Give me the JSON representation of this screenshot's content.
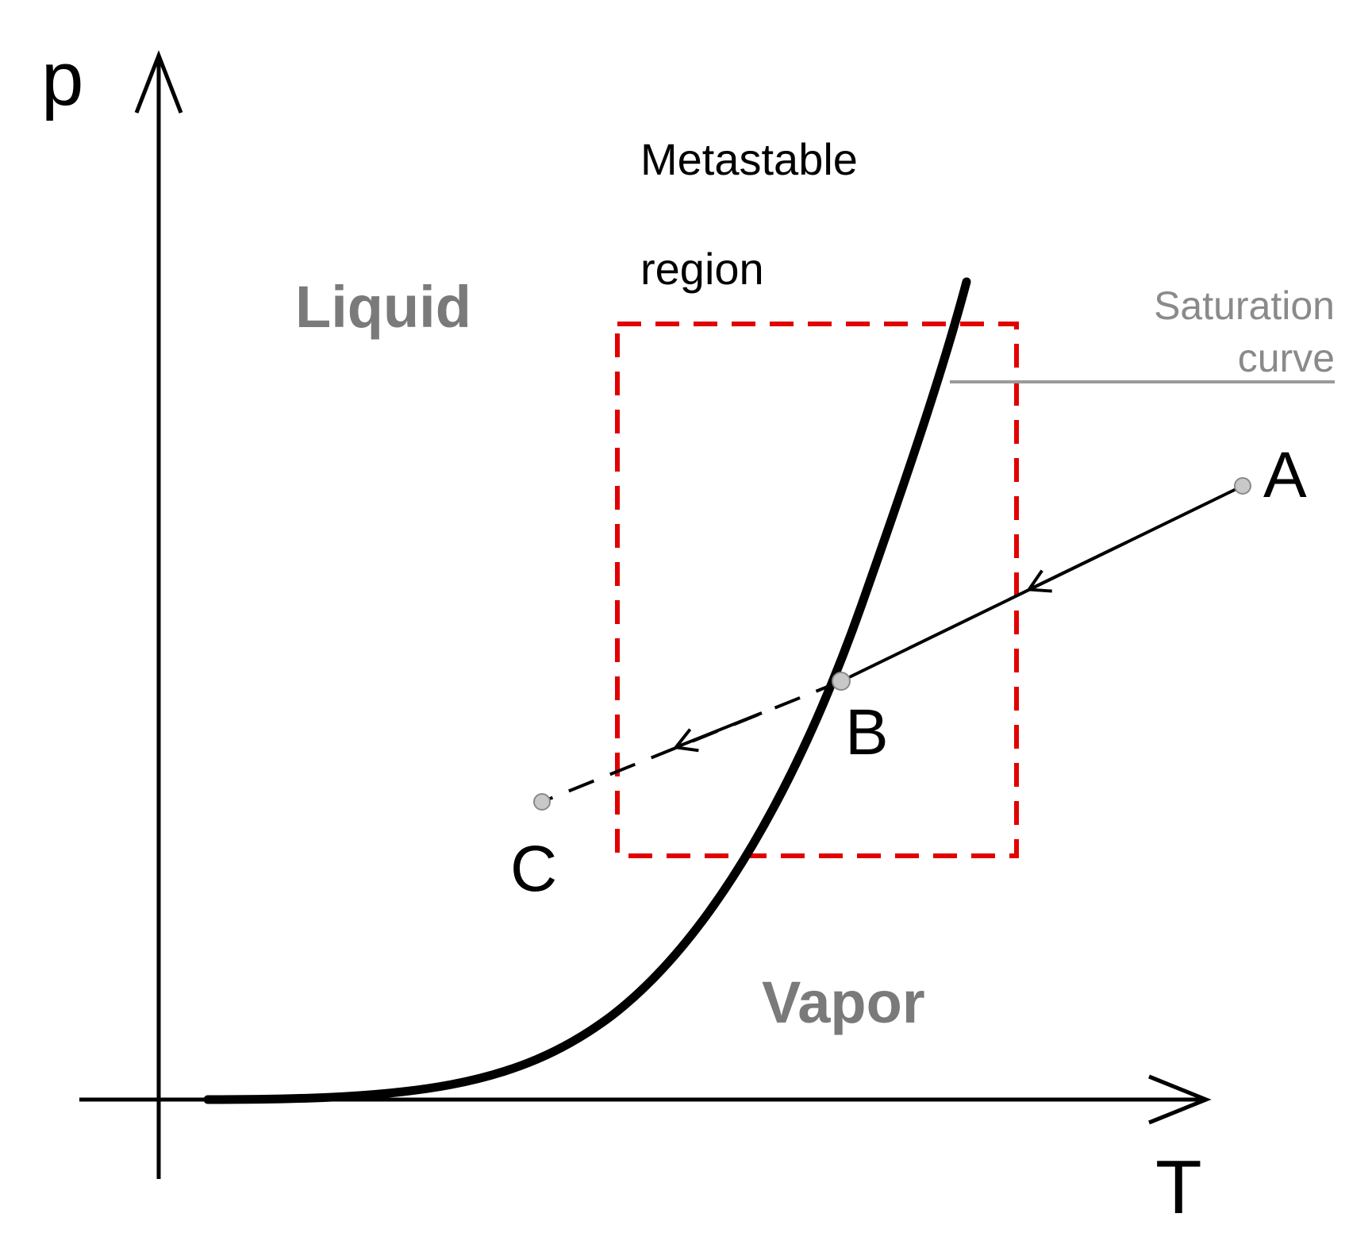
{
  "axes": {
    "y_label": "p",
    "x_label": "T"
  },
  "regions": {
    "liquid": "Liquid",
    "vapor": "Vapor"
  },
  "metastable": {
    "line1": "Metastable",
    "line2": "region"
  },
  "saturation": {
    "line1": "Saturation",
    "line2": "curve"
  },
  "points": {
    "a": "A",
    "b": "B",
    "c": "C"
  },
  "colors": {
    "axis": "#000000",
    "curve": "#000000",
    "region_text": "#7a7a7a",
    "saturation_text": "#8a8a8a",
    "leader_line": "#9a9a9a",
    "metastable_box": "#e00000",
    "point_marker": "#c8c8c8"
  }
}
